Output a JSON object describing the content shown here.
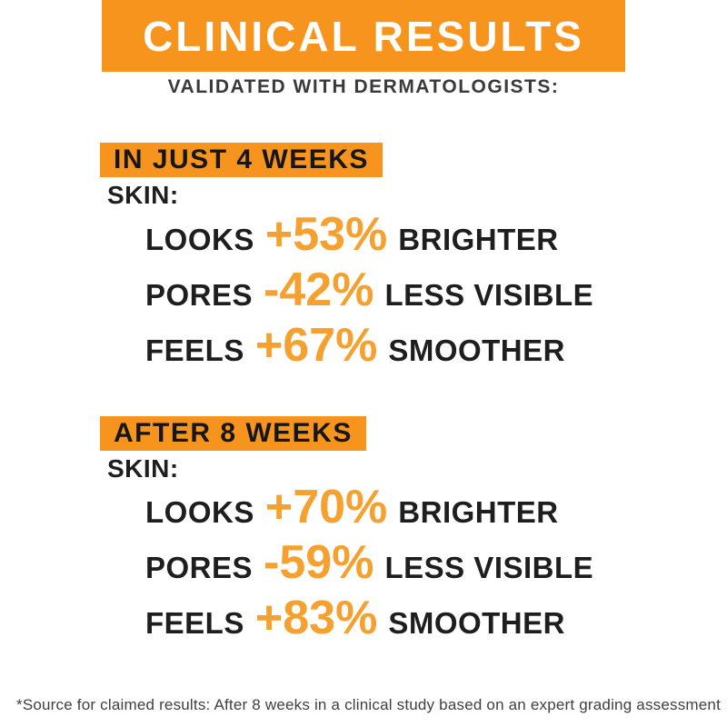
{
  "page": {
    "title": "CLINICAL RESULTS",
    "subtitle": "VALIDATED WITH DERMATOLOGISTS:",
    "footnote": "*Source for claimed results: After 8 weeks in a clinical study based on an expert grading assessment"
  },
  "colors": {
    "banner_orange": "#F7941E",
    "stat_value_orange": "#F5A02F",
    "title_text": "#FFFFFF",
    "body_text": "#1E1E1E",
    "subtitle_text": "#3A3A3A",
    "footnote_text": "#404040",
    "background": "#FFFFFF"
  },
  "sections": [
    {
      "banner": "IN JUST 4 WEEKS",
      "label": "SKIN:",
      "stats": [
        {
          "prefix": "LOOKS",
          "value": "+53%",
          "suffix": "BRIGHTER"
        },
        {
          "prefix": "PORES",
          "value": "-42%",
          "suffix": "LESS VISIBLE"
        },
        {
          "prefix": "FEELS",
          "value": "+67%",
          "suffix": "SMOOTHER"
        }
      ]
    },
    {
      "banner": "AFTER 8 WEEKS",
      "label": "SKIN:",
      "stats": [
        {
          "prefix": "LOOKS",
          "value": "+70%",
          "suffix": "BRIGHTER"
        },
        {
          "prefix": "PORES",
          "value": "-59%",
          "suffix": "LESS VISIBLE"
        },
        {
          "prefix": "FEELS",
          "value": "+83%",
          "suffix": "SMOOTHER"
        }
      ]
    }
  ]
}
